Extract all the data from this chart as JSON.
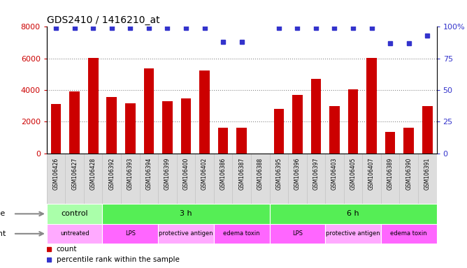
{
  "title": "GDS2410 / 1416210_at",
  "samples": [
    "GSM106426",
    "GSM106427",
    "GSM106428",
    "GSM106392",
    "GSM106393",
    "GSM106394",
    "GSM106399",
    "GSM106400",
    "GSM106402",
    "GSM106386",
    "GSM106387",
    "GSM106388",
    "GSM106395",
    "GSM106396",
    "GSM106397",
    "GSM106403",
    "GSM106405",
    "GSM106407",
    "GSM106389",
    "GSM106390",
    "GSM106391"
  ],
  "counts": [
    3100,
    3900,
    6050,
    3550,
    3150,
    5350,
    3300,
    3450,
    5250,
    1600,
    1600,
    0,
    2800,
    3700,
    4700,
    3000,
    4050,
    6050,
    1350,
    1600,
    3000
  ],
  "percentile_y": [
    99,
    99,
    99,
    99,
    99,
    99,
    99,
    99,
    99,
    88,
    88,
    0,
    99,
    99,
    99,
    99,
    99,
    99,
    87,
    87,
    93
  ],
  "bar_color": "#cc0000",
  "dot_color": "#3333cc",
  "ylim_left": [
    0,
    8000
  ],
  "ylim_right": [
    0,
    100
  ],
  "yticks_left": [
    0,
    2000,
    4000,
    6000,
    8000
  ],
  "yticks_right": [
    0,
    25,
    50,
    75,
    100
  ],
  "grid_lines": [
    2000,
    4000,
    6000
  ],
  "time_groups": [
    {
      "label": "control",
      "start": 0,
      "end": 3,
      "color": "#aaffaa"
    },
    {
      "label": "3 h",
      "start": 3,
      "end": 12,
      "color": "#55ee55"
    },
    {
      "label": "6 h",
      "start": 12,
      "end": 21,
      "color": "#55ee55"
    }
  ],
  "agent_groups": [
    {
      "label": "untreated",
      "start": 0,
      "end": 3,
      "color": "#ffaaff"
    },
    {
      "label": "LPS",
      "start": 3,
      "end": 6,
      "color": "#ff66ff"
    },
    {
      "label": "protective antigen",
      "start": 6,
      "end": 9,
      "color": "#ffaaff"
    },
    {
      "label": "edema toxin",
      "start": 9,
      "end": 12,
      "color": "#ff66ff"
    },
    {
      "label": "LPS",
      "start": 12,
      "end": 15,
      "color": "#ff66ff"
    },
    {
      "label": "protective antigen",
      "start": 15,
      "end": 18,
      "color": "#ffaaff"
    },
    {
      "label": "edema toxin",
      "start": 18,
      "end": 21,
      "color": "#ff66ff"
    }
  ],
  "bg_color": "#ffffff",
  "grid_color": "#888888",
  "tick_label_color_left": "#cc0000",
  "tick_label_color_right": "#3333cc",
  "title_color": "#000000",
  "xtick_bg_color": "#dddddd"
}
